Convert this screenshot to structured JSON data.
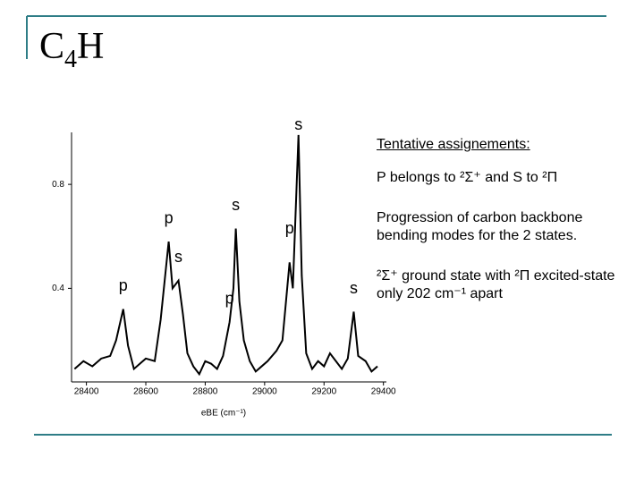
{
  "slide": {
    "title_parts": [
      "C",
      "4",
      "H"
    ],
    "notes": [
      "Tentative assignements:",
      "P belongs to ²Σ⁺ and S to ²Π",
      "Progression of carbon backbone bending modes for the 2 states.",
      "²Σ⁺ ground state with ²Π excited-state only 202 cm⁻¹ apart"
    ]
  },
  "chart_data": {
    "type": "line",
    "x_label": "eBE (cm⁻¹)",
    "color": "#000000",
    "x": [
      28360,
      28390,
      28420,
      28450,
      28480,
      28500,
      28524,
      28540,
      28560,
      28580,
      28600,
      28630,
      28650,
      28677,
      28690,
      28710,
      28725,
      28740,
      28760,
      28780,
      28800,
      28820,
      28840,
      28860,
      28882,
      28895,
      28903,
      28915,
      28930,
      28950,
      28970,
      28990,
      29010,
      29040,
      29060,
      29084,
      29095,
      29114,
      29125,
      29140,
      29160,
      29180,
      29200,
      29220,
      29240,
      29260,
      29280,
      29300,
      29315,
      29340,
      29360,
      29380
    ],
    "values": [
      0.09,
      0.12,
      0.1,
      0.13,
      0.14,
      0.2,
      0.32,
      0.18,
      0.09,
      0.11,
      0.13,
      0.12,
      0.28,
      0.58,
      0.4,
      0.43,
      0.3,
      0.15,
      0.1,
      0.07,
      0.12,
      0.11,
      0.09,
      0.14,
      0.27,
      0.4,
      0.63,
      0.35,
      0.2,
      0.12,
      0.08,
      0.1,
      0.12,
      0.16,
      0.2,
      0.5,
      0.4,
      0.99,
      0.45,
      0.15,
      0.09,
      0.12,
      0.1,
      0.15,
      0.12,
      0.09,
      0.13,
      0.31,
      0.14,
      0.12,
      0.08,
      0.1
    ],
    "xlim": [
      28350,
      29410
    ],
    "ylim": [
      0.04,
      1.0
    ],
    "xticks": [
      28400,
      28600,
      28800,
      29000,
      29200,
      29400
    ],
    "yticks": [
      0.4,
      0.8
    ],
    "annotations": [
      {
        "text": "p",
        "x": 28524,
        "y": 0.38
      },
      {
        "text": "p",
        "x": 28677,
        "y": 0.64
      },
      {
        "text": "s",
        "x": 28710,
        "y": 0.49
      },
      {
        "text": "p",
        "x": 28882,
        "y": 0.33
      },
      {
        "text": "s",
        "x": 28903,
        "y": 0.69
      },
      {
        "text": "p",
        "x": 29084,
        "y": 0.6
      },
      {
        "text": "s",
        "x": 29114,
        "y": 1.0
      },
      {
        "text": "s",
        "x": 29300,
        "y": 0.37
      }
    ]
  }
}
